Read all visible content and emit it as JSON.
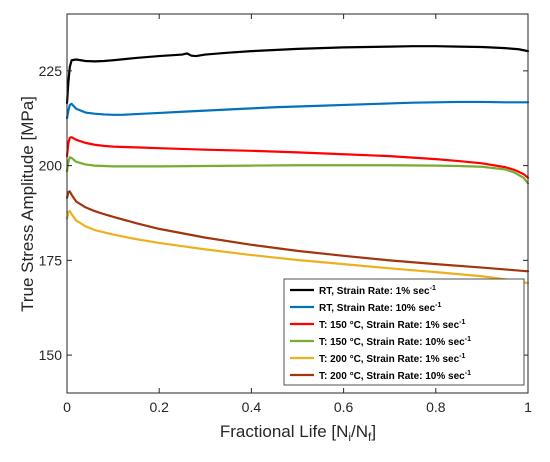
{
  "chart_data": {
    "type": "line",
    "title": "",
    "xlabel": "Fractional Life [N_i/N_f]",
    "xlabel_parts": {
      "base": "Fractional Life [N",
      "sub1": "i",
      "slash": "/N",
      "sub2": "f",
      "end": "]"
    },
    "ylabel": "True Stress Amplitude [MPa]",
    "xlim": [
      0,
      1
    ],
    "ylim": [
      140,
      240
    ],
    "xticks": [
      0,
      0.2,
      0.4,
      0.6,
      0.8,
      1
    ],
    "xtick_labels": [
      "0",
      "0.2",
      "0.4",
      "0.6",
      "0.8",
      "1"
    ],
    "yticks": [
      150,
      175,
      200,
      225
    ],
    "ytick_labels": [
      "150",
      "175",
      "200",
      "225"
    ],
    "grid": false,
    "legend_position": "lower-right",
    "series": [
      {
        "name": "RT, Strain Rate: 1% sec-1",
        "label_main": "RT, Strain Rate: 1% sec",
        "label_sup": "-1",
        "color": "#000000",
        "x": [
          0.0,
          0.003,
          0.006,
          0.01,
          0.02,
          0.04,
          0.06,
          0.08,
          0.1,
          0.15,
          0.2,
          0.25,
          0.26,
          0.27,
          0.28,
          0.3,
          0.35,
          0.4,
          0.45,
          0.5,
          0.55,
          0.6,
          0.65,
          0.7,
          0.75,
          0.8,
          0.85,
          0.9,
          0.95,
          0.98,
          1.0
        ],
        "y": [
          216.5,
          222.0,
          226.0,
          227.8,
          228.0,
          227.6,
          227.5,
          227.6,
          227.8,
          228.4,
          228.9,
          229.3,
          229.6,
          229.0,
          228.9,
          229.3,
          229.8,
          230.2,
          230.5,
          230.8,
          231.0,
          231.2,
          231.3,
          231.4,
          231.5,
          231.5,
          231.4,
          231.3,
          231.0,
          230.7,
          230.2
        ]
      },
      {
        "name": "RT, Strain Rate: 10% sec-1",
        "label_main": "RT, Strain Rate: 10% sec",
        "label_sup": "-1",
        "color": "#0072BD",
        "x": [
          0.0,
          0.003,
          0.006,
          0.01,
          0.02,
          0.04,
          0.06,
          0.08,
          0.1,
          0.12,
          0.15,
          0.2,
          0.25,
          0.3,
          0.35,
          0.4,
          0.45,
          0.5,
          0.55,
          0.6,
          0.65,
          0.7,
          0.75,
          0.8,
          0.85,
          0.9,
          0.95,
          1.0
        ],
        "y": [
          212.5,
          214.5,
          216.0,
          216.3,
          215.0,
          214.0,
          213.7,
          213.5,
          213.4,
          213.4,
          213.6,
          213.9,
          214.2,
          214.5,
          214.8,
          215.1,
          215.4,
          215.6,
          215.8,
          216.0,
          216.2,
          216.4,
          216.6,
          216.7,
          216.8,
          216.8,
          216.7,
          216.7
        ]
      },
      {
        "name": "T: 150 °C, Strain Rate: 1% sec-1",
        "label_main": "T: 150 °C, Strain Rate: 1% sec",
        "label_sup": "-1",
        "color": "#FF0000",
        "x": [
          0.0,
          0.003,
          0.006,
          0.01,
          0.02,
          0.04,
          0.06,
          0.08,
          0.1,
          0.15,
          0.2,
          0.3,
          0.4,
          0.5,
          0.6,
          0.7,
          0.8,
          0.85,
          0.9,
          0.95,
          0.97,
          0.99,
          1.0
        ],
        "y": [
          202.5,
          206.0,
          207.3,
          207.5,
          206.8,
          206.0,
          205.5,
          205.2,
          205.0,
          204.8,
          204.6,
          204.2,
          203.9,
          203.5,
          203.0,
          202.5,
          201.7,
          201.2,
          200.6,
          199.6,
          198.9,
          197.8,
          196.8
        ]
      },
      {
        "name": "T: 150 °C, Strain Rate: 10% sec-1",
        "label_main": "T: 150 °C, Strain Rate: 10% sec",
        "label_sup": "-1",
        "color": "#77AC30",
        "x": [
          0.0,
          0.003,
          0.006,
          0.01,
          0.02,
          0.04,
          0.06,
          0.08,
          0.1,
          0.15,
          0.2,
          0.3,
          0.4,
          0.5,
          0.6,
          0.7,
          0.8,
          0.85,
          0.9,
          0.95,
          0.97,
          0.99,
          1.0
        ],
        "y": [
          198.5,
          201.0,
          202.2,
          202.0,
          201.0,
          200.3,
          200.0,
          199.9,
          199.8,
          199.8,
          199.8,
          199.9,
          200.0,
          200.1,
          200.1,
          200.1,
          200.0,
          199.9,
          199.7,
          199.0,
          198.2,
          196.8,
          195.3
        ]
      },
      {
        "name": "T: 200 °C, Strain Rate: 1% sec-1",
        "label_main": "T: 200 °C, Strain Rate: 1% sec",
        "label_sup": "-1",
        "color": "#EDB120",
        "x": [
          0.0,
          0.003,
          0.006,
          0.01,
          0.02,
          0.04,
          0.06,
          0.08,
          0.1,
          0.15,
          0.2,
          0.3,
          0.4,
          0.5,
          0.6,
          0.7,
          0.8,
          0.9,
          0.95,
          1.0
        ],
        "y": [
          186.0,
          187.8,
          188.0,
          187.2,
          185.5,
          184.0,
          183.0,
          182.4,
          181.8,
          180.6,
          179.6,
          177.9,
          176.4,
          175.1,
          174.0,
          172.9,
          171.9,
          170.8,
          170.0,
          169.0
        ]
      },
      {
        "name": "T: 200 °C, Strain Rate: 10% sec-1",
        "label_main": "T: 200 °C, Strain Rate: 10% sec",
        "label_sup": "-1",
        "color": "#A2350D",
        "x": [
          0.0,
          0.003,
          0.006,
          0.01,
          0.02,
          0.04,
          0.06,
          0.08,
          0.1,
          0.15,
          0.2,
          0.3,
          0.4,
          0.5,
          0.6,
          0.7,
          0.8,
          0.9,
          0.95,
          1.0
        ],
        "y": [
          191.5,
          193.0,
          193.2,
          192.3,
          190.5,
          189.0,
          188.0,
          187.2,
          186.5,
          184.8,
          183.3,
          181.0,
          179.1,
          177.5,
          176.2,
          175.0,
          174.0,
          173.1,
          172.6,
          172.1
        ]
      }
    ]
  }
}
